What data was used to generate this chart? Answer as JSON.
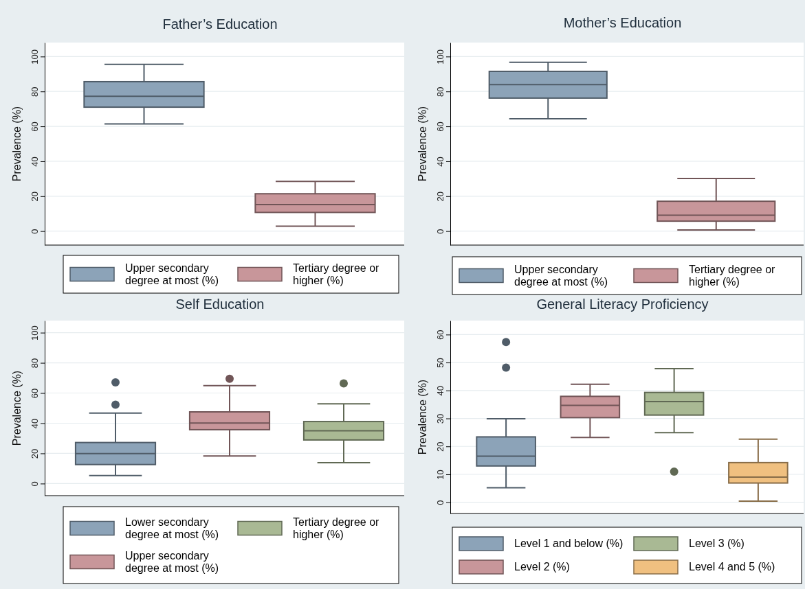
{
  "chart_data": [
    {
      "type": "box",
      "title": "Father’s Education",
      "ylabel": "Prevalence (%)",
      "categories": [
        null,
        null
      ],
      "ylim": [
        -8,
        108
      ],
      "yticks": [
        0,
        20,
        40,
        60,
        80,
        100
      ],
      "grid": "y",
      "legend": "bottom",
      "tick_labels": "y",
      "series": [
        {
          "name": "Upper secondary degree at most (%)",
          "color": "#8ca3b8",
          "boxes": [
            {
              "low": 61.4,
              "q1": 71,
              "median": 77.2,
              "q3": 85.6,
              "high": 95.5
            },
            null
          ]
        },
        {
          "name": "Tertiary degree or higher (%)",
          "color": "#c8969a",
          "boxes": [
            null,
            {
              "low": 2.8,
              "q1": 10.7,
              "median": 15.2,
              "q3": 21.4,
              "high": 28.5
            }
          ]
        }
      ]
    },
    {
      "type": "box",
      "title": "Mother’s Education",
      "ylabel": "Prevalence (%)",
      "categories": [
        null,
        null
      ],
      "ylim": [
        -8,
        108
      ],
      "yticks": [
        0,
        20,
        40,
        60,
        80,
        100
      ],
      "grid": "y",
      "legend": "bottom",
      "tick_labels": "y",
      "series": [
        {
          "name": "Upper secondary degree at most (%)",
          "color": "#8ca3b8",
          "boxes": [
            {
              "low": 64.4,
              "q1": 76.2,
              "median": 83.9,
              "q3": 91.5,
              "high": 96.7
            },
            null
          ]
        },
        {
          "name": "Tertiary degree or higher (%)",
          "color": "#c8969a",
          "boxes": [
            null,
            {
              "low": 0.7,
              "q1": 5.7,
              "median": 9.1,
              "q3": 17.1,
              "high": 30.1
            }
          ]
        }
      ]
    },
    {
      "type": "box",
      "title": "Self Education",
      "ylabel": "Prevalence (%)",
      "categories": [
        null,
        null,
        null
      ],
      "ylim": [
        -8,
        108
      ],
      "yticks": [
        0,
        20,
        40,
        60,
        80,
        100
      ],
      "grid": "y",
      "legend": "bottom",
      "tick_labels": "y",
      "series": [
        {
          "name": "Lower secondary degree at most (%)",
          "color": "#8ca3b8",
          "boxes": [
            {
              "low": 5.3,
              "q1": 12.6,
              "median": 19.9,
              "q3": 27.2,
              "high": 46.7,
              "outliers": [
                52.3,
                67.1
              ]
            },
            null,
            null
          ]
        },
        {
          "name": "Upper secondary degree at most (%)",
          "color": "#c8969a",
          "boxes": [
            null,
            {
              "low": 18.3,
              "q1": 35.7,
              "median": 40.1,
              "q3": 47.5,
              "high": 64.9,
              "outliers": [
                69.4
              ]
            },
            null
          ]
        },
        {
          "name": "Tertiary degree or higher (%)",
          "color": "#a9b994",
          "boxes": [
            null,
            null,
            {
              "low": 13.8,
              "q1": 28.9,
              "median": 35,
              "q3": 41.1,
              "high": 52.8,
              "outliers": [
                66.4
              ]
            }
          ]
        }
      ]
    },
    {
      "type": "box",
      "title": "General Literacy Proficiency",
      "ylabel": "Prevalence (%)",
      "categories": [
        null,
        null,
        null,
        null
      ],
      "ylim": [
        -4,
        65
      ],
      "yticks": [
        0,
        10,
        20,
        30,
        40,
        50,
        60
      ],
      "grid": "y",
      "legend": "bottom",
      "tick_labels": "y",
      "series": [
        {
          "name": "Level 1 and below (%)",
          "color": "#8ca3b8",
          "boxes": [
            {
              "low": 5.2,
              "q1": 13,
              "median": 16.5,
              "q3": 23.4,
              "high": 29.9,
              "outliers": [
                48.2,
                57.3
              ]
            },
            null,
            null,
            null
          ]
        },
        {
          "name": "Level 2 (%)",
          "color": "#c8969a",
          "boxes": [
            null,
            {
              "low": 23.2,
              "q1": 30.3,
              "median": 34.7,
              "q3": 37.9,
              "high": 42.2
            },
            null,
            null
          ]
        },
        {
          "name": "Level 3 (%)",
          "color": "#a9b994",
          "boxes": [
            null,
            null,
            {
              "low": 24.9,
              "q1": 31.2,
              "median": 36,
              "q3": 39.3,
              "high": 47.8,
              "outliers": [
                11
              ]
            },
            null
          ]
        },
        {
          "name": "Level 4 and 5 (%)",
          "color": "#f0c080",
          "boxes": [
            null,
            null,
            null,
            {
              "low": 0.4,
              "q1": 6.9,
              "median": 9,
              "q3": 14.2,
              "high": 22.6
            }
          ]
        }
      ]
    }
  ]
}
